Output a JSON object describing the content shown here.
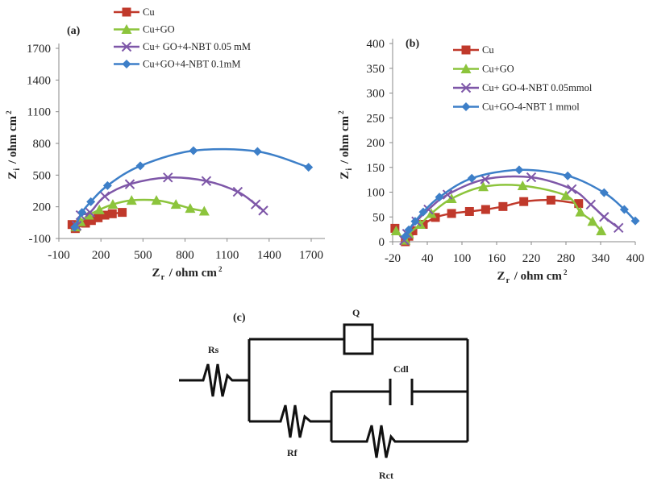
{
  "chart_data": [
    {
      "type": "scatter",
      "panel_label": "(a)",
      "xlabel": "Zr / ohm cm2",
      "ylabel": "Zi / ohm cm2",
      "xlim": [
        -100,
        1700
      ],
      "ylim": [
        -100,
        1700
      ],
      "xticks": [
        -100,
        200,
        500,
        800,
        1100,
        1400,
        1700
      ],
      "yticks": [
        -100,
        200,
        500,
        800,
        1100,
        1400,
        1700
      ],
      "grid": false,
      "legend_position": "top",
      "series": [
        {
          "name": "Cu",
          "color": "#c0392b",
          "marker": "square",
          "x": [
            -6,
            17,
            90,
            132,
            180,
            228,
            281,
            352
          ],
          "y": [
            32,
            -6,
            45,
            70,
            96,
            121,
            134,
            147
          ]
        },
        {
          "name": "Cu+GO",
          "color": "#8cc43c",
          "marker": "triangle",
          "x": [
            20,
            55,
            113,
            189,
            285,
            419,
            596,
            735,
            837,
            937
          ],
          "y": [
            10,
            58,
            121,
            172,
            223,
            261,
            261,
            223,
            185,
            159
          ]
        },
        {
          "name": "Cu+ GO+4-NBT  0.05 mM",
          "color": "#7e57a8",
          "marker": "x",
          "x": [
            27,
            55,
            122,
            228,
            406,
            678,
            952,
            1176,
            1304,
            1358
          ],
          "y": [
            20,
            121,
            147,
            299,
            414,
            477,
            444,
            342,
            223,
            164
          ]
        },
        {
          "name": "Cu+GO+4-NBT 0.1mM",
          "color": "#3d7fc8",
          "marker": "diamond",
          "x": [
            13,
            65,
            128,
            247,
            481,
            860,
            1317,
            1681
          ],
          "y": [
            7,
            147,
            248,
            401,
            587,
            731,
            724,
            574
          ]
        }
      ]
    },
    {
      "type": "scatter",
      "panel_label": "(b)",
      "xlabel": "Zr / ohm cm2",
      "ylabel": "Zi / ohm cm2",
      "xlim": [
        -20,
        400
      ],
      "ylim": [
        0,
        400
      ],
      "xticks": [
        -20,
        40,
        100,
        160,
        220,
        280,
        340,
        400
      ],
      "yticks": [
        0,
        50,
        100,
        150,
        200,
        250,
        300,
        350,
        400
      ],
      "grid": false,
      "legend_position": "top",
      "series": [
        {
          "name": "Cu",
          "color": "#c0392b",
          "marker": "square",
          "x": [
            -16,
            2,
            8,
            15,
            33,
            54,
            82,
            113,
            141,
            171,
            207,
            254,
            302
          ],
          "y": [
            27,
            0,
            11,
            22,
            35,
            49,
            57,
            61,
            65,
            71,
            81,
            84,
            77
          ]
        },
        {
          "name": "Cu+GO",
          "color": "#8cc43c",
          "marker": "triangle",
          "x": [
            -14,
            2,
            8,
            28,
            47,
            82,
            137,
            205,
            280,
            305,
            326,
            341
          ],
          "y": [
            22,
            3,
            16,
            35,
            57,
            87,
            111,
            113,
            93,
            60,
            41,
            22
          ]
        },
        {
          "name": "Cu+ GO-4-NBT 0.05mmol",
          "color": "#7e57a8",
          "marker": "x",
          "x": [
            0,
            5,
            21,
            42,
            75,
            140,
            220,
            290,
            323,
            346,
            371
          ],
          "y": [
            3,
            16,
            41,
            65,
            95,
            126,
            130,
            106,
            75,
            50,
            28
          ]
        },
        {
          "name": "Cu+GO-4-NBT 1 mmol",
          "color": "#3d7fc8",
          "marker": "diamond",
          "x": [
            2,
            8,
            19,
            33,
            61,
            117,
            199,
            283,
            346,
            381,
            400
          ],
          "y": [
            11,
            24,
            41,
            60,
            90,
            128,
            145,
            133,
            99,
            65,
            42
          ]
        }
      ]
    }
  ],
  "circuit": {
    "panel_label": "(c)",
    "labels": {
      "rs": "Rs",
      "q": "Q",
      "cdl": "Cdl",
      "rf": "Rf",
      "rct": "Rct"
    }
  }
}
